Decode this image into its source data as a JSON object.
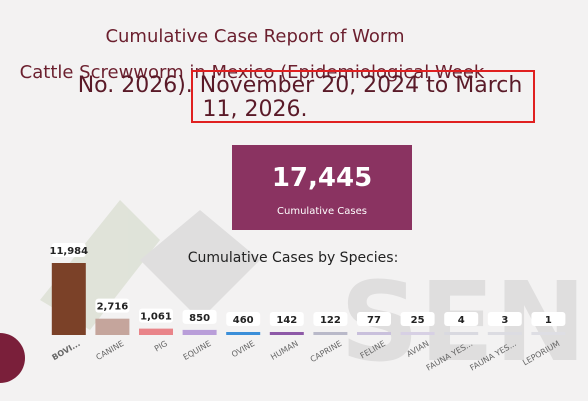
{
  "header": {
    "title_lines": [
      "Cumulative Case Report of Worm",
      "Cattle Screwworm in Mexico (Epidemiological Week"
    ],
    "subtitle_lines": [
      "No. 2026). November 20, 2024 to March",
      "11, 2026."
    ]
  },
  "kpi": {
    "value": "17,445",
    "label": "Cumulative Cases"
  },
  "chart_data": {
    "type": "bar",
    "title": "Cumulative Cases by Species:",
    "categories": [
      "BOVI...",
      "CANINE",
      "PIG",
      "EQUINE",
      "OVINE",
      "HUMAN",
      "CAPRINE",
      "FELINE",
      "AVIAN",
      "FAUNA YES...",
      "FAUNA YES...",
      "LEPORIUM"
    ],
    "values": [
      11984,
      2716,
      1061,
      850,
      460,
      142,
      122,
      77,
      25,
      4,
      3,
      1
    ],
    "value_labels": [
      "11,984",
      "2,716",
      "1,061",
      "850",
      "460",
      "142",
      "122",
      "77",
      "25",
      "4",
      "3",
      "1"
    ],
    "colors": [
      "#7b4128",
      "#c5a59c",
      "#e98489",
      "#b99ed9",
      "#3b8fd9",
      "#8e5aa8",
      "#b9b9c9",
      "#c9c0dc",
      "#d7d0e4",
      "#d9d9e0",
      "#dcdce2",
      "#dedee4"
    ]
  }
}
